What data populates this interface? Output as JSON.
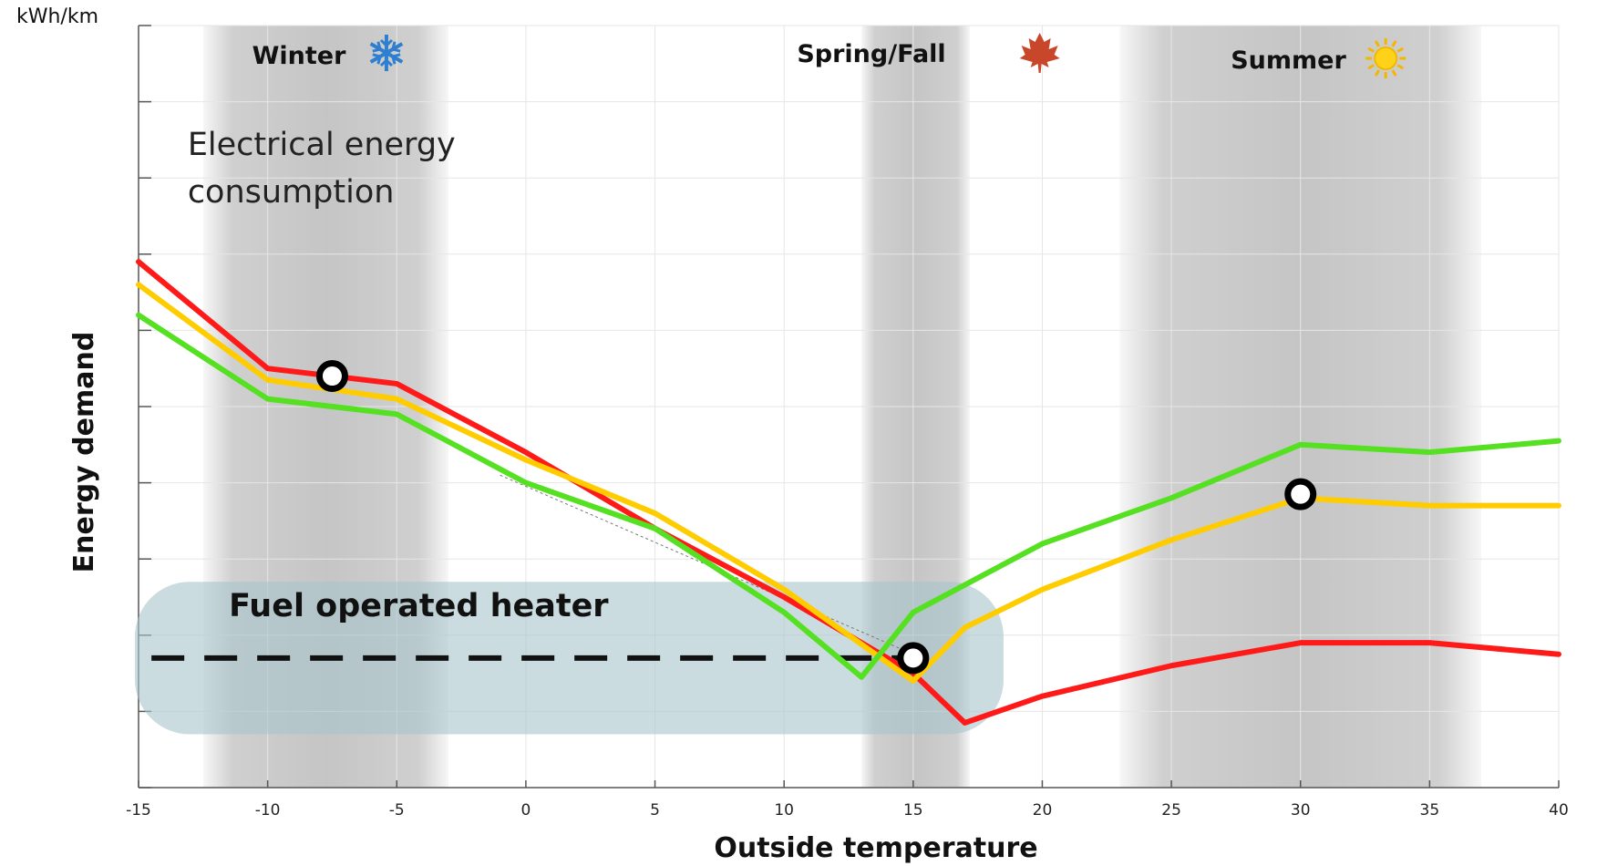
{
  "chart_data": {
    "type": "line",
    "unit_label": "kWh/km",
    "xlabel": "Outside temperature",
    "ylabel": "Energy demand",
    "xlim": [
      -15,
      40
    ],
    "ylim": [
      0,
      10
    ],
    "x_ticks": [
      -15,
      -10,
      -5,
      0,
      5,
      10,
      15,
      20,
      25,
      30,
      35,
      40
    ],
    "y_ticks": [
      0,
      1,
      2,
      3,
      4,
      5,
      6,
      7,
      8,
      9,
      10
    ],
    "y_tick_labels_shown": false,
    "grid": true,
    "seasons": [
      {
        "label": "Winter",
        "range": [
          -12.5,
          -3
        ],
        "icon": "snowflake-icon",
        "color": "#2f7fd0"
      },
      {
        "label": "Spring/Fall",
        "range": [
          13,
          17.2
        ],
        "icon": "maple-leaf-icon",
        "color": "#c8462a"
      },
      {
        "label": "Summer",
        "range": [
          23,
          37
        ],
        "icon": "sun-icon",
        "color": "#ffd21a"
      }
    ],
    "annotation": {
      "line1": "Electrical energy",
      "line2": "consumption"
    },
    "heater": {
      "label": "Fuel operated heater",
      "x_range": [
        -15,
        18.5
      ],
      "y_range": [
        0.7,
        2.7
      ],
      "dash_level": 1.7,
      "dash_x_range": [
        -14.5,
        15
      ]
    },
    "series": [
      {
        "color": "#ff1a1a",
        "x": [
          -15,
          -10,
          -5,
          0,
          5,
          10,
          15,
          17,
          20,
          25,
          30,
          35,
          40
        ],
        "y": [
          6.9,
          5.5,
          5.3,
          4.4,
          3.4,
          2.5,
          1.5,
          0.85,
          1.2,
          1.6,
          1.9,
          1.9,
          1.75
        ]
      },
      {
        "color": "#ffcc00",
        "x": [
          -15,
          -10,
          -5,
          0,
          5,
          10,
          15,
          17,
          20,
          25,
          30,
          35,
          40
        ],
        "y": [
          6.6,
          5.35,
          5.1,
          4.3,
          3.6,
          2.6,
          1.4,
          2.1,
          2.6,
          3.25,
          3.8,
          3.7,
          3.7
        ]
      },
      {
        "color": "#55e022",
        "x": [
          -15,
          -10,
          -5,
          0,
          5,
          10,
          13,
          15,
          20,
          25,
          30,
          35,
          40
        ],
        "y": [
          6.2,
          5.1,
          4.9,
          4.0,
          3.4,
          2.3,
          1.45,
          2.3,
          3.2,
          3.8,
          4.5,
          4.4,
          4.55
        ]
      }
    ],
    "markers": [
      {
        "x": -7.5,
        "y": 5.4
      },
      {
        "x": 15,
        "y": 1.7
      },
      {
        "x": 30,
        "y": 3.85
      }
    ],
    "trend_line": {
      "x": [
        -1,
        15
      ],
      "y": [
        4.1,
        1.75
      ]
    }
  }
}
